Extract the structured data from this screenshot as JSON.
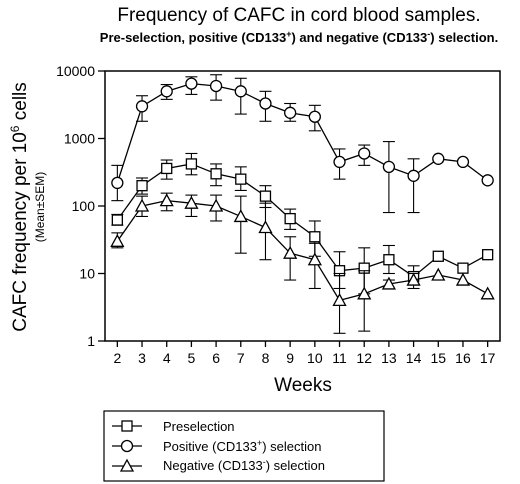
{
  "chart_data": {
    "type": "line",
    "title": "Frequency of CAFC in cord blood samples.",
    "subtitle": {
      "p1": "Pre-selection, positive (CD133",
      "p1_sup": "+",
      "p2": ") and negative (CD133",
      "p2_sup": "-",
      "p3": ") selection."
    },
    "xlabel": "Weeks",
    "ylabel": {
      "main": "CAFC frequency per 10",
      "sup": "6",
      "tail": " cells",
      "sub": "(Mean±SEM)"
    },
    "yscale": "log",
    "ylim": [
      1,
      10000
    ],
    "xlim": [
      1.5,
      17.5
    ],
    "yticks": [
      1,
      10,
      100,
      1000,
      10000
    ],
    "ytick_labels": [
      "1",
      "10",
      "100",
      "1000",
      "10000"
    ],
    "x": [
      2,
      3,
      4,
      5,
      6,
      7,
      8,
      9,
      10,
      11,
      12,
      13,
      14,
      15,
      16,
      17
    ],
    "xtick_labels": [
      "2",
      "3",
      "4",
      "5",
      "6",
      "7",
      "8",
      "9",
      "10",
      "11",
      "12",
      "13",
      "14",
      "15",
      "16",
      "17"
    ],
    "series": [
      {
        "marker": "square",
        "values": [
          62,
          200,
          360,
          420,
          300,
          250,
          140,
          65,
          35,
          11,
          12,
          16,
          9,
          18,
          12,
          19
        ],
        "err_low": [
          52,
          150,
          250,
          290,
          200,
          170,
          95,
          45,
          18,
          6,
          5,
          10,
          6,
          null,
          null,
          null
        ],
        "err_high": [
          75,
          260,
          480,
          600,
          420,
          380,
          200,
          90,
          60,
          21,
          24,
          26,
          13,
          null,
          null,
          null
        ]
      },
      {
        "marker": "circle",
        "values": [
          220,
          3000,
          5000,
          6500,
          6000,
          5000,
          3300,
          2400,
          2100,
          450,
          600,
          380,
          280,
          500,
          450,
          240
        ],
        "err_low": [
          120,
          1800,
          3800,
          4500,
          3700,
          2300,
          1800,
          1800,
          1300,
          250,
          400,
          80,
          80,
          null,
          null,
          null
        ],
        "err_high": [
          400,
          4300,
          6300,
          8200,
          8800,
          7800,
          5000,
          3300,
          3100,
          700,
          800,
          900,
          500,
          null,
          null,
          null
        ]
      },
      {
        "marker": "triangle",
        "values": [
          30,
          100,
          120,
          110,
          100,
          70,
          48,
          20,
          16,
          4,
          5,
          7,
          8,
          9.5,
          8,
          5
        ],
        "err_low": [
          24,
          70,
          85,
          70,
          60,
          20,
          16,
          8,
          6,
          1.3,
          1.4,
          6,
          7,
          null,
          null,
          null
        ],
        "err_high": [
          40,
          140,
          155,
          145,
          145,
          140,
          110,
          35,
          28,
          10,
          11,
          8,
          10,
          null,
          null,
          null
        ]
      }
    ],
    "legend": {
      "placement": "bottom",
      "entries": [
        {
          "marker": "square",
          "label": "Preselection"
        },
        {
          "marker": "circle",
          "label_parts": [
            "Positive (CD133",
            "+",
            ") selection"
          ]
        },
        {
          "marker": "triangle",
          "label_parts": [
            "Negative (CD133",
            "-",
            ") selection"
          ]
        }
      ]
    },
    "grid": false,
    "colors": {
      "line": "#000000",
      "marker_fill": "#ffffff",
      "background": "#ffffff"
    }
  }
}
